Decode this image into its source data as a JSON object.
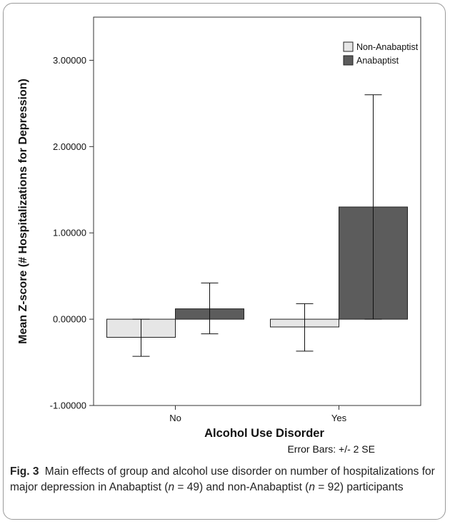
{
  "chart_data": {
    "type": "bar",
    "categories": [
      "No",
      "Yes"
    ],
    "series": [
      {
        "name": "Non-Anabaptist",
        "values": [
          -0.21,
          -0.09
        ],
        "error_low": [
          -0.43,
          -0.37
        ],
        "error_high": [
          0.0,
          0.18
        ]
      },
      {
        "name": "Anabaptist",
        "values": [
          0.12,
          1.3
        ],
        "error_low": [
          -0.17,
          0.0
        ],
        "error_high": [
          0.42,
          2.6
        ]
      }
    ],
    "xlabel": "Alcohol Use Disorder",
    "ylabel": "Mean Z-score (# Hospitalizations for Depression)",
    "ylim": [
      -1.0,
      3.5
    ],
    "yticks": [
      -1.0,
      0.0,
      1.0,
      2.0,
      3.0
    ],
    "ytick_labels": [
      "-1.00000",
      "0.00000",
      "1.00000",
      "2.00000",
      "3.00000"
    ],
    "note": "Error Bars: +/- 2 SE",
    "legend_position": "top-right",
    "colors": {
      "Non-Anabaptist": "#e6e6e6",
      "Anabaptist": "#5c5c5c"
    }
  },
  "caption": {
    "label": "Fig. 3",
    "text_1": "Main effects of group and alcohol use disorder on number of hospitalizations for major depression in Anabaptist (",
    "n_symbol_1": "n",
    "text_2": " = 49) and non-Anabaptist (",
    "n_symbol_2": "n",
    "text_3": " = 92) participants"
  }
}
